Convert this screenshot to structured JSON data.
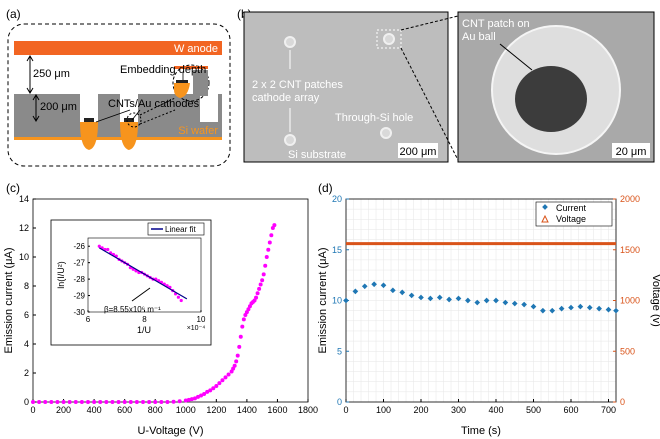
{
  "panels": {
    "a": {
      "label": "(a)",
      "anode": "W anode",
      "gap": "250 μm",
      "embedding": "Embedding depth",
      "cathodes": "CNTs/Au cathodes",
      "depth": "200 μm",
      "wafer": "Si wafer"
    },
    "b": {
      "label": "(b)",
      "array": [
        "2 x 2 CNT patches",
        "cathode array"
      ],
      "hole": "Through-Si hole",
      "substrate": "Si substrate",
      "scale1": "200 μm",
      "patch": [
        "CNT patch on",
        "Au ball"
      ],
      "scale2": "20 μm"
    },
    "c": {
      "label": "(c)"
    },
    "d": {
      "label": "(d)"
    }
  },
  "colors": {
    "anode": "#f26522",
    "wafer": "#808080",
    "ball": "#f7941d",
    "magenta": "#ff00ff",
    "current": "#1f77b4",
    "voltage": "#d95319"
  },
  "chart_data": [
    {
      "id": "c-main",
      "type": "scatter",
      "title": "",
      "xlabel": "U-Voltage (V)",
      "ylabel": "Emission current (μA)",
      "xlim": [
        0,
        1800
      ],
      "ylim": [
        0,
        14
      ],
      "xticks": [
        0,
        200,
        400,
        600,
        800,
        1000,
        1200,
        1400,
        1600,
        1800
      ],
      "yticks": [
        0,
        2,
        4,
        6,
        8,
        10,
        12,
        14
      ],
      "x": [
        0,
        40,
        80,
        120,
        160,
        200,
        240,
        280,
        320,
        360,
        400,
        440,
        480,
        520,
        560,
        600,
        640,
        680,
        720,
        760,
        800,
        840,
        880,
        920,
        960,
        1000,
        1020,
        1040,
        1060,
        1080,
        1100,
        1120,
        1140,
        1160,
        1180,
        1200,
        1220,
        1240,
        1260,
        1280,
        1300,
        1310,
        1320,
        1330,
        1340,
        1350,
        1360,
        1370,
        1380,
        1390,
        1400,
        1410,
        1420,
        1430,
        1440,
        1450,
        1460,
        1470,
        1480,
        1490,
        1500,
        1510,
        1520,
        1530,
        1540,
        1550,
        1560,
        1570,
        1580
      ],
      "y": [
        0,
        0,
        0,
        0,
        0,
        0,
        0,
        0,
        0,
        0,
        0,
        0,
        0,
        0,
        0,
        0,
        0,
        0,
        0,
        0,
        0,
        0,
        0,
        0.02,
        0.05,
        0.1,
        0.15,
        0.2,
        0.25,
        0.35,
        0.45,
        0.55,
        0.7,
        0.8,
        0.95,
        1.1,
        1.3,
        1.5,
        1.7,
        1.9,
        2.1,
        2.3,
        2.5,
        2.8,
        3.2,
        3.8,
        4.5,
        5.2,
        5.7,
        6.0,
        6.2,
        6.4,
        6.6,
        6.8,
        6.9,
        7.0,
        7.2,
        7.5,
        7.8,
        8.1,
        8.4,
        8.8,
        9.4,
        10.0,
        10.5,
        11.0,
        11.5,
        12.0,
        12.2
      ]
    },
    {
      "id": "c-inset",
      "type": "scatter",
      "xlabel": "1/U",
      "ylabel": "ln(I/U²)",
      "x_multiplier": "×10⁻⁴",
      "legend": "Linear fit",
      "annotation": "β=8.55x10⁶ m⁻¹",
      "xlim": [
        6,
        10
      ],
      "ylim": [
        -30,
        -25.5
      ],
      "xticks": [
        6,
        8,
        10
      ],
      "yticks": [
        -26,
        -27,
        -28,
        -29,
        -30
      ],
      "x": [
        6.4,
        6.5,
        6.6,
        6.7,
        6.8,
        6.9,
        7.0,
        7.1,
        7.2,
        7.3,
        7.4,
        7.5,
        7.6,
        7.7,
        7.8,
        7.9,
        8.0,
        8.1,
        8.2,
        8.3,
        8.4,
        8.5,
        8.6,
        8.7,
        8.8,
        8.9,
        9.0,
        9.1,
        9.2,
        9.3
      ],
      "y": [
        -26.0,
        -26.1,
        -26.2,
        -26.2,
        -26.4,
        -26.5,
        -26.6,
        -26.8,
        -26.9,
        -27.0,
        -27.1,
        -27.3,
        -27.4,
        -27.5,
        -27.6,
        -27.6,
        -27.7,
        -27.8,
        -27.9,
        -28.0,
        -28.0,
        -28.1,
        -28.2,
        -28.3,
        -28.4,
        -28.5,
        -28.7,
        -28.9,
        -29.1,
        -29.3
      ],
      "fit": {
        "x": [
          6.4,
          9.5
        ],
        "y": [
          -26.1,
          -29.2
        ]
      }
    },
    {
      "id": "d",
      "type": "scatter",
      "xlabel": "Time (s)",
      "ylabel": "Emission current (μA)",
      "y2label": "Voltage (v)",
      "xlim": [
        0,
        720
      ],
      "ylim": [
        0,
        20
      ],
      "y2lim": [
        0,
        2000
      ],
      "xticks": [
        0,
        100,
        200,
        300,
        400,
        500,
        600,
        700
      ],
      "yticks": [
        0,
        5,
        10,
        15,
        20
      ],
      "y2ticks": [
        0,
        500,
        1000,
        1500,
        2000
      ],
      "series": [
        {
          "name": "Current",
          "x": [
            0,
            25,
            50,
            75,
            100,
            125,
            150,
            175,
            200,
            225,
            250,
            275,
            300,
            325,
            350,
            375,
            400,
            425,
            450,
            475,
            500,
            525,
            550,
            575,
            600,
            625,
            650,
            675,
            700,
            720
          ],
          "values": [
            10.0,
            10.9,
            11.4,
            11.6,
            11.5,
            11.0,
            10.8,
            10.5,
            10.3,
            10.2,
            10.3,
            10.1,
            10.2,
            10.0,
            9.8,
            10.0,
            10.0,
            9.8,
            9.7,
            9.6,
            9.4,
            9.0,
            9.0,
            9.2,
            9.3,
            9.4,
            9.3,
            9.2,
            9.1,
            9.0
          ]
        },
        {
          "name": "Voltage",
          "x": [
            0,
            720
          ],
          "values": [
            1560,
            1560
          ]
        }
      ]
    }
  ]
}
